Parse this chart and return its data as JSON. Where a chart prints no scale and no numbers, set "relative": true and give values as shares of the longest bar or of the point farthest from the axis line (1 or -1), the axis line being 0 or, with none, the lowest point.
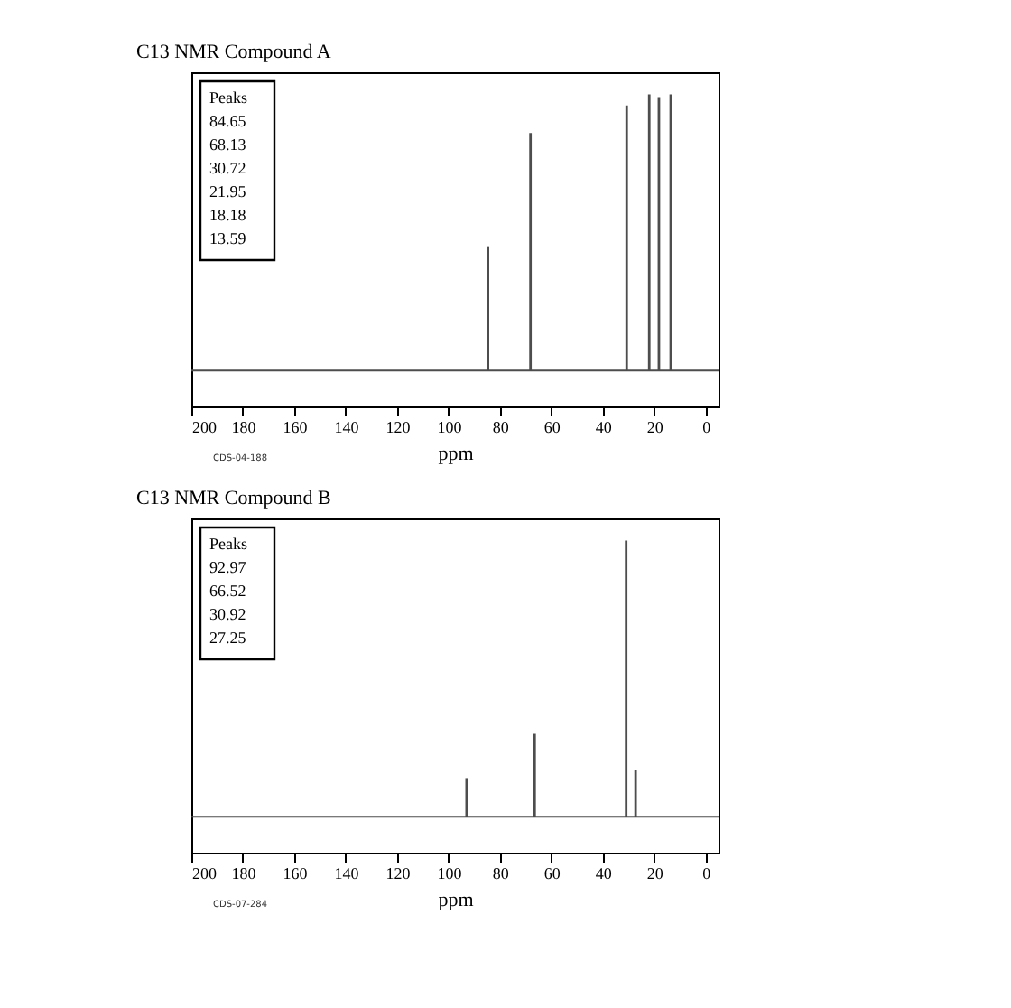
{
  "chart_data": [
    {
      "type": "bar",
      "title": "C13 NMR Compound A",
      "xlabel": "ppm",
      "relative": true,
      "grid": false,
      "x": [
        84.65,
        68.13,
        30.72,
        21.95,
        18.18,
        13.59
      ],
      "series": [
        {
          "color": "#4d4d4d",
          "values": [
            0.45,
            0.86,
            0.96,
            1,
            0.99,
            1
          ]
        }
      ],
      "xlim": [
        200,
        -5
      ],
      "xticks": [
        200,
        180,
        160,
        140,
        120,
        100,
        80,
        60,
        40,
        20,
        0
      ],
      "annotations": [
        "Peaks\n84.65\n68.13\n30.72\n21.95\n18.18\n13.59",
        "CDS-04-188"
      ]
    },
    {
      "type": "bar",
      "title": "C13 NMR Compound B",
      "xlabel": "ppm",
      "relative": true,
      "grid": false,
      "x": [
        92.97,
        66.52,
        30.92,
        27.25
      ],
      "series": [
        {
          "color": "#4d4d4d",
          "values": [
            0.14,
            0.3,
            1,
            0.17
          ]
        }
      ],
      "xlim": [
        200,
        -5
      ],
      "xticks": [
        200,
        180,
        160,
        140,
        120,
        100,
        80,
        60,
        40,
        20,
        0
      ],
      "annotations": [
        "Peaks\n92.97\n66.52\n30.92\n27.25",
        "CDS-07-284"
      ]
    }
  ]
}
